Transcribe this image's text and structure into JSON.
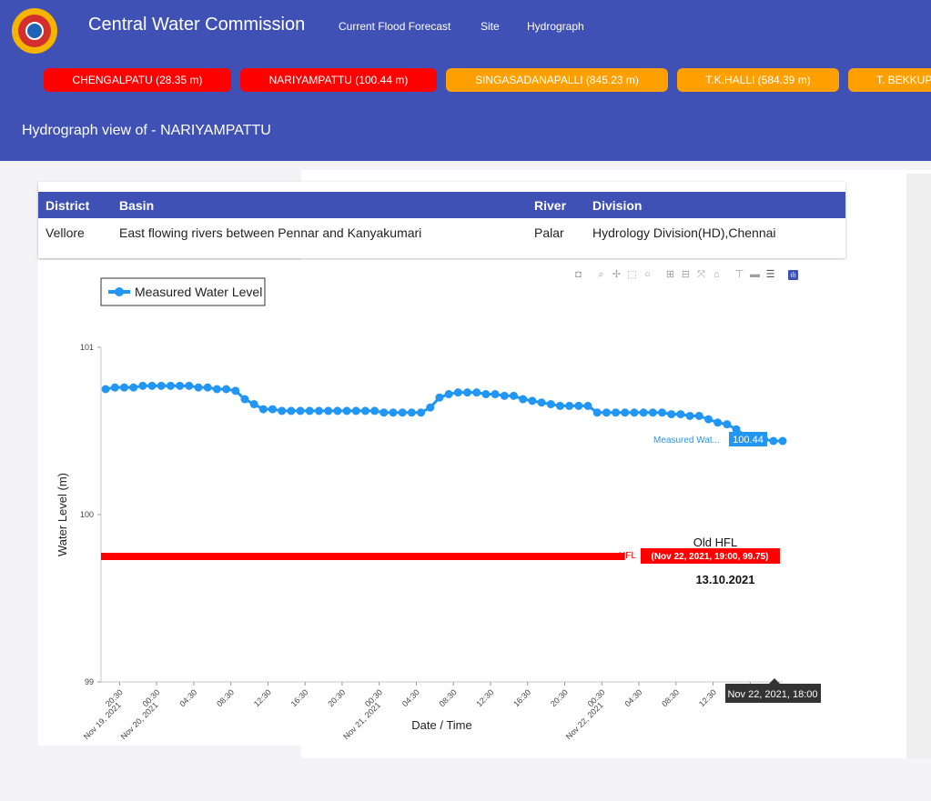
{
  "app": {
    "brand": "Central Water Commission",
    "nav": [
      "Current Flood Forecast",
      "Site",
      "Hydrograph"
    ]
  },
  "stations": [
    {
      "label": "CHENGALPATU (28.35 m)",
      "color": "#ff0000"
    },
    {
      "label": "NARIYAMPATTU (100.44 m)",
      "color": "#ff0000"
    },
    {
      "label": "SINGASADANAPALLI (845.23 m)",
      "color": "#ffa000"
    },
    {
      "label": "T.K.HALLI (584.39 m)",
      "color": "#ffa000"
    },
    {
      "label": "T. BEKKUPPE",
      "color": "#ffa000"
    }
  ],
  "page": {
    "title": "Hydrograph view of - NARIYAMPATTU"
  },
  "info_table": {
    "headers": [
      "District",
      "Basin",
      "River",
      "Division"
    ],
    "row": [
      "Vellore",
      "East flowing rivers between Pennar and Kanyakumari",
      "Palar",
      "Hydrology Division(HD),Chennai"
    ]
  },
  "toolbar_icons": [
    "camera-icon",
    "zoom-icon",
    "pan-icon",
    "box-select-icon",
    "lasso-icon",
    "zoom-in-icon",
    "zoom-out-icon",
    "autoscale-icon",
    "reset-icon",
    "spike-icon",
    "hover-closest-icon",
    "hover-compare-icon",
    "plotly-logo-icon"
  ],
  "chart_data": {
    "type": "line",
    "ylabel": "Water Level (m)",
    "xlabel": "Date / Time",
    "ylim": [
      99,
      101
    ],
    "yticks": [
      99,
      100,
      101
    ],
    "xticks": [
      {
        "hour": 20.5,
        "label": "20:30",
        "sub": "Nov 19, 2021"
      },
      {
        "hour": 24.5,
        "label": "00:30",
        "sub": "Nov 20, 2021"
      },
      {
        "hour": 28.5,
        "label": "04:30"
      },
      {
        "hour": 32.5,
        "label": "08:30"
      },
      {
        "hour": 36.5,
        "label": "12:30"
      },
      {
        "hour": 40.5,
        "label": "16:30"
      },
      {
        "hour": 44.5,
        "label": "20:30"
      },
      {
        "hour": 48.5,
        "label": "00:30",
        "sub": "Nov 21, 2021"
      },
      {
        "hour": 52.5,
        "label": "04:30"
      },
      {
        "hour": 56.5,
        "label": "08:30"
      },
      {
        "hour": 60.5,
        "label": "12:30"
      },
      {
        "hour": 64.5,
        "label": "16:30"
      },
      {
        "hour": 68.5,
        "label": "20:30"
      },
      {
        "hour": 72.5,
        "label": "00:30",
        "sub": "Nov 22, 2021"
      },
      {
        "hour": 76.5,
        "label": "04:30"
      },
      {
        "hour": 80.5,
        "label": "08:30"
      },
      {
        "hour": 84.5,
        "label": "12:30"
      },
      {
        "hour": 88.5,
        "label": "16:"
      }
    ],
    "xrange_hours": [
      18.5,
      92
    ],
    "series": [
      {
        "name": "Measured Water Level",
        "color": "#2196f3",
        "start_hour": 19,
        "step_hours": 1,
        "values": [
          100.75,
          100.76,
          100.76,
          100.76,
          100.77,
          100.77,
          100.77,
          100.77,
          100.77,
          100.77,
          100.76,
          100.76,
          100.75,
          100.75,
          100.74,
          100.69,
          100.66,
          100.63,
          100.63,
          100.62,
          100.62,
          100.62,
          100.62,
          100.62,
          100.62,
          100.62,
          100.62,
          100.62,
          100.62,
          100.62,
          100.61,
          100.61,
          100.61,
          100.61,
          100.61,
          100.64,
          100.7,
          100.72,
          100.73,
          100.73,
          100.73,
          100.72,
          100.72,
          100.71,
          100.71,
          100.69,
          100.68,
          100.67,
          100.66,
          100.65,
          100.65,
          100.65,
          100.65,
          100.61,
          100.61,
          100.61,
          100.61,
          100.61,
          100.61,
          100.61,
          100.61,
          100.6,
          100.6,
          100.59,
          100.59,
          100.57,
          100.55,
          100.54,
          100.51,
          100.47,
          100.46,
          100.45,
          100.44,
          100.44
        ]
      },
      {
        "name": "HFL",
        "color": "#ff0000",
        "x_hours": [
          18.5,
          75
        ],
        "values": [
          99.75,
          99.75
        ]
      }
    ],
    "hover_labels": {
      "measured": {
        "prefix": "Measured Wat...",
        "value": "100.44"
      },
      "hfl": {
        "prefix": "HFL",
        "value": "(Nov 22, 2021, 19:00, 99.75)"
      },
      "x_spike": "Nov 22, 2021, 18:00"
    },
    "annotations": [
      {
        "text": "Old  HFL",
        "bold": false
      },
      {
        "text": "13.10.2021",
        "bold": true
      }
    ],
    "legend": {
      "position": "top-left",
      "entries": [
        "Measured Water Level"
      ]
    }
  }
}
